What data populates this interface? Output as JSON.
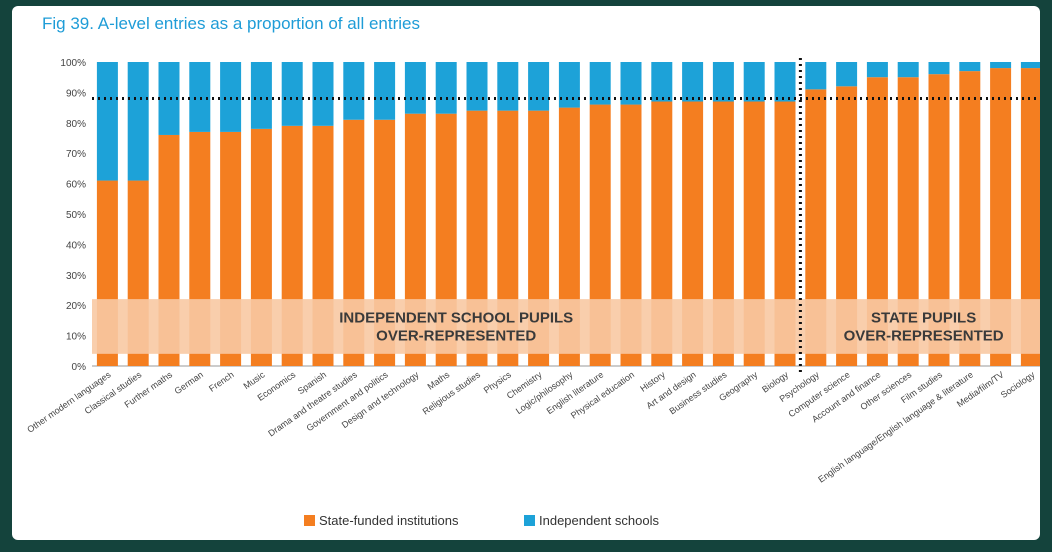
{
  "title": "Fig 39. A-level entries as a proportion of all entries",
  "chart_data": {
    "type": "bar",
    "stacked": true,
    "categories": [
      "Other modern languages",
      "Classical studies",
      "Further maths",
      "German",
      "French",
      "Music",
      "Economics",
      "Spanish",
      "Drama and theatre studies",
      "Government and politics",
      "Design and technology",
      "Maths",
      "Religious studies",
      "Physics",
      "Chemistry",
      "Logic/philosophy",
      "English literature",
      "Physical education",
      "History",
      "Art and design",
      "Business studies",
      "Geography",
      "Biology",
      "Psychology",
      "Computer science",
      "Account and finance",
      "Other sciences",
      "Film studies",
      "English language/English language & literature",
      "Media/film/TV",
      "Sociology"
    ],
    "series": [
      {
        "name": "State-funded institutions",
        "values": [
          61,
          61,
          76,
          77,
          77,
          78,
          79,
          79,
          81,
          81,
          83,
          83,
          84,
          84,
          84,
          85,
          86,
          86,
          87,
          87,
          87,
          87,
          87,
          91,
          92,
          95,
          95,
          96,
          97,
          98,
          98
        ]
      },
      {
        "name": "Independent schools",
        "values": [
          39,
          39,
          24,
          23,
          23,
          22,
          21,
          21,
          19,
          19,
          17,
          17,
          16,
          16,
          16,
          15,
          14,
          14,
          13,
          13,
          13,
          13,
          13,
          9,
          8,
          5,
          5,
          4,
          3,
          2,
          2
        ]
      }
    ],
    "yticks": [
      "0%",
      "10%",
      "20%",
      "30%",
      "40%",
      "50%",
      "60%",
      "70%",
      "80%",
      "90%",
      "100%"
    ],
    "ylim": [
      0,
      100
    ],
    "reference_line": 88,
    "divider_after_category": "Biology",
    "colors": {
      "state": "#f47e20",
      "independent": "#1da2d8",
      "band": "#f8c9a3",
      "title": "#1e9cd7"
    },
    "annotations": {
      "left_line1": "INDEPENDENT SCHOOL PUPILS",
      "left_line2": "OVER-REPRESENTED",
      "right_line1": "STATE PUPILS",
      "right_line2": "OVER-REPRESENTED"
    },
    "legend": [
      "State-funded institutions",
      "Independent schools"
    ]
  }
}
